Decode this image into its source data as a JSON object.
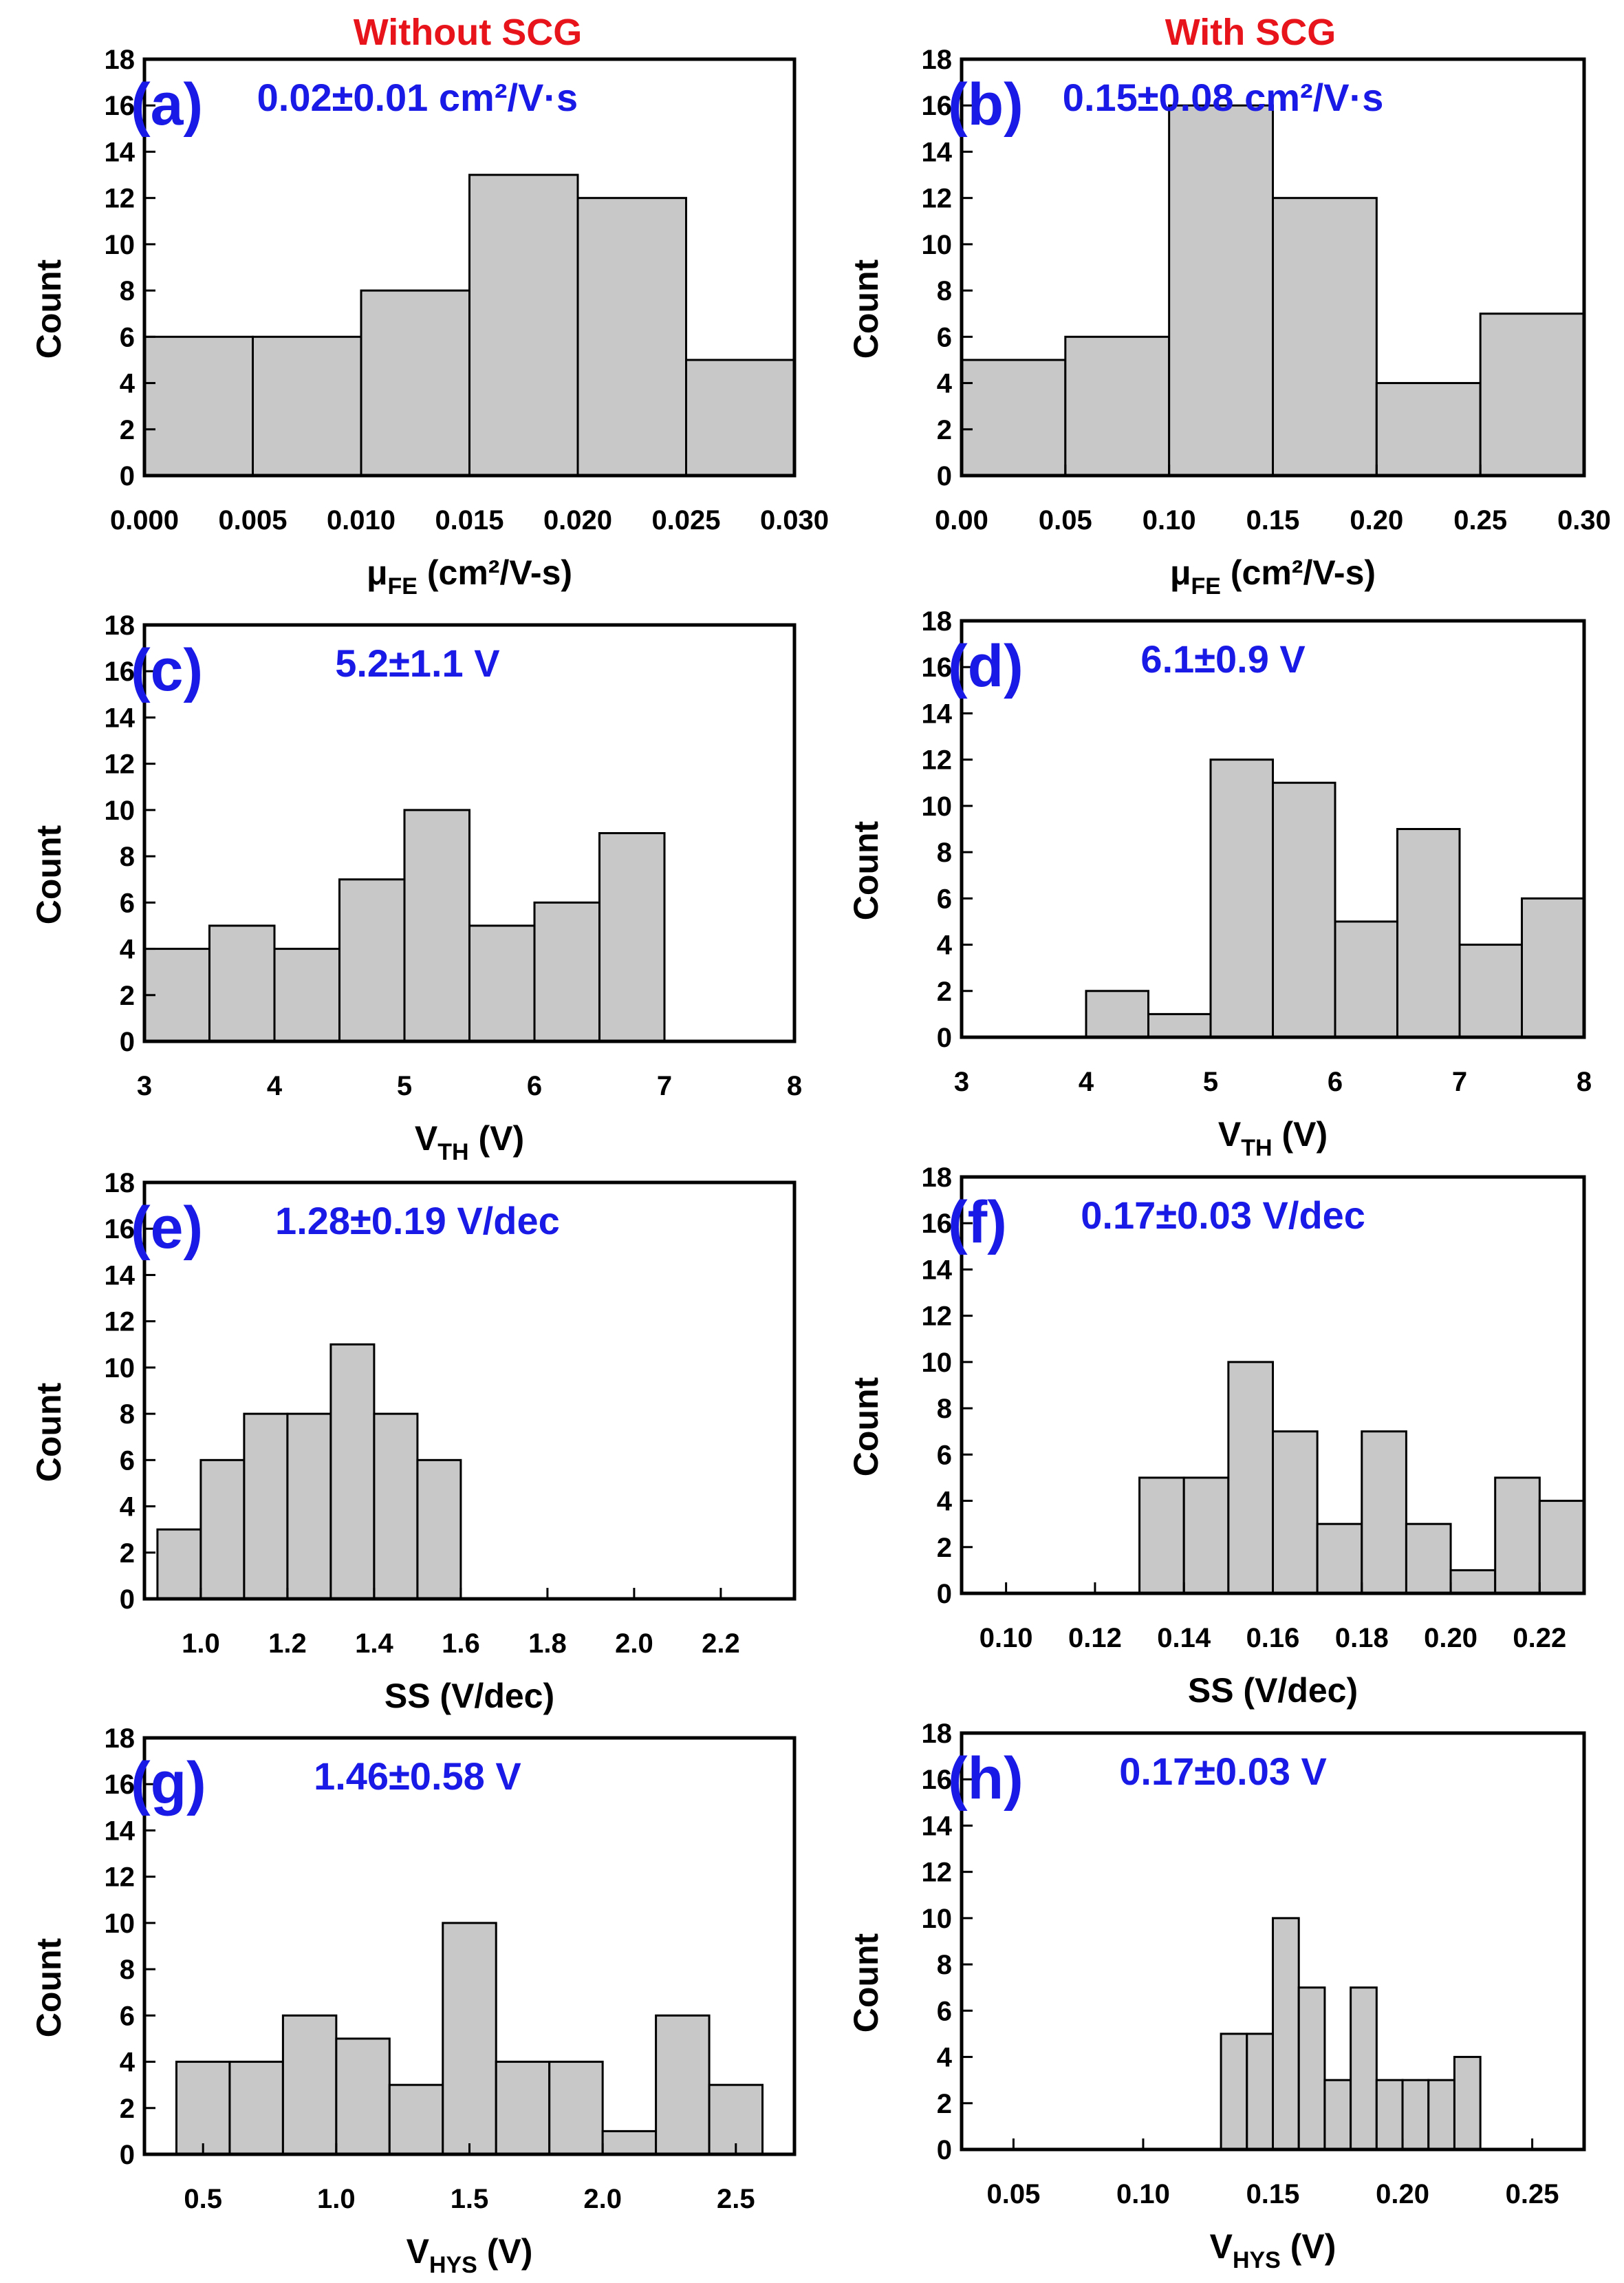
{
  "headers": {
    "left": "Without SCG",
    "right": "With SCG"
  },
  "chart_data": [
    {
      "id": "a",
      "type": "bar",
      "panel_label": "(a)",
      "annotation": "0.02±0.01 cm²/V·s",
      "xlabel": "μFE (cm²/V-s)",
      "xlabel_main": "μ",
      "xlabel_sub": "FE",
      "xlabel_rest": " (cm²/V-s)",
      "ylabel": "Count",
      "xlim": [
        0,
        0.03
      ],
      "ylim": [
        0,
        18
      ],
      "xticks": [
        0,
        0.005,
        0.01,
        0.015,
        0.02,
        0.025,
        0.03
      ],
      "xtick_labels": [
        "0.000",
        "0.005",
        "0.010",
        "0.015",
        "0.020",
        "0.025",
        "0.030"
      ],
      "yticks": [
        0,
        2,
        4,
        6,
        8,
        10,
        12,
        14,
        16,
        18
      ],
      "bin_edges": [
        0,
        0.005,
        0.01,
        0.015,
        0.02,
        0.025,
        0.03
      ],
      "values": [
        6,
        6,
        8,
        13,
        12,
        5
      ]
    },
    {
      "id": "b",
      "type": "bar",
      "panel_label": "(b)",
      "annotation": "0.15±0.08 cm²/V·s",
      "xlabel": "μFE (cm²/V-s)",
      "xlabel_main": "μ",
      "xlabel_sub": "FE",
      "xlabel_rest": " (cm²/V-s)",
      "ylabel": "Count",
      "xlim": [
        0,
        0.3
      ],
      "ylim": [
        0,
        18
      ],
      "xticks": [
        0,
        0.05,
        0.1,
        0.15,
        0.2,
        0.25,
        0.3
      ],
      "xtick_labels": [
        "0.00",
        "0.05",
        "0.10",
        "0.15",
        "0.20",
        "0.25",
        "0.30"
      ],
      "yticks": [
        0,
        2,
        4,
        6,
        8,
        10,
        12,
        14,
        16,
        18
      ],
      "bin_edges": [
        0,
        0.05,
        0.1,
        0.15,
        0.2,
        0.25,
        0.3
      ],
      "values": [
        5,
        6,
        16,
        12,
        4,
        7
      ]
    },
    {
      "id": "c",
      "type": "bar",
      "panel_label": "(c)",
      "annotation": "5.2±1.1 V",
      "xlabel": "VTH (V)",
      "xlabel_main": "V",
      "xlabel_sub": "TH",
      "xlabel_rest": " (V)",
      "ylabel": "Count",
      "xlim": [
        3,
        8
      ],
      "ylim": [
        0,
        18
      ],
      "xticks": [
        3,
        4,
        5,
        6,
        7,
        8
      ],
      "xtick_labels": [
        "3",
        "4",
        "5",
        "6",
        "7",
        "8"
      ],
      "yticks": [
        0,
        2,
        4,
        6,
        8,
        10,
        12,
        14,
        16,
        18
      ],
      "bin_edges": [
        3,
        3.5,
        4,
        4.5,
        5,
        5.5,
        6,
        6.5,
        7
      ],
      "values": [
        4,
        5,
        4,
        7,
        10,
        5,
        6,
        9
      ]
    },
    {
      "id": "d",
      "type": "bar",
      "panel_label": "(d)",
      "annotation": "6.1±0.9 V",
      "xlabel": "VTH (V)",
      "xlabel_main": "V",
      "xlabel_sub": "TH",
      "xlabel_rest": " (V)",
      "ylabel": "Count",
      "xlim": [
        3,
        8
      ],
      "ylim": [
        0,
        18
      ],
      "xticks": [
        3,
        4,
        5,
        6,
        7,
        8
      ],
      "xtick_labels": [
        "3",
        "4",
        "5",
        "6",
        "7",
        "8"
      ],
      "yticks": [
        0,
        2,
        4,
        6,
        8,
        10,
        12,
        14,
        16,
        18
      ],
      "bin_edges": [
        4,
        4.5,
        5,
        5.5,
        6,
        6.5,
        7,
        7.5,
        8
      ],
      "values": [
        2,
        1,
        12,
        11,
        5,
        9,
        4,
        6
      ]
    },
    {
      "id": "e",
      "type": "bar",
      "panel_label": "(e)",
      "annotation": "1.28±0.19 V/dec",
      "xlabel": "SS (V/dec)",
      "xlabel_main": "SS (V/dec)",
      "xlabel_sub": "",
      "xlabel_rest": "",
      "ylabel": "Count",
      "xlim": [
        0.87,
        2.37
      ],
      "ylim": [
        0,
        18
      ],
      "xticks": [
        1.0,
        1.2,
        1.4,
        1.6,
        1.8,
        2.0,
        2.2
      ],
      "xtick_labels": [
        "1.0",
        "1.2",
        "1.4",
        "1.6",
        "1.8",
        "2.0",
        "2.2"
      ],
      "yticks": [
        0,
        2,
        4,
        6,
        8,
        10,
        12,
        14,
        16,
        18
      ],
      "bin_edges": [
        0.9,
        1.0,
        1.1,
        1.2,
        1.3,
        1.4,
        1.5,
        1.6
      ],
      "values": [
        3,
        6,
        8,
        8,
        11,
        8,
        6
      ]
    },
    {
      "id": "f",
      "type": "bar",
      "panel_label": "(f)",
      "annotation": "0.17±0.03 V/dec",
      "xlabel": "SS (V/dec)",
      "xlabel_main": "SS (V/dec)",
      "xlabel_sub": "",
      "xlabel_rest": "",
      "ylabel": "Count",
      "xlim": [
        0.09,
        0.23
      ],
      "ylim": [
        0,
        18
      ],
      "xticks": [
        0.1,
        0.12,
        0.14,
        0.16,
        0.18,
        0.2,
        0.22
      ],
      "xtick_labels": [
        "0.10",
        "0.12",
        "0.14",
        "0.16",
        "0.18",
        "0.20",
        "0.22"
      ],
      "yticks": [
        0,
        2,
        4,
        6,
        8,
        10,
        12,
        14,
        16,
        18
      ],
      "bin_edges": [
        0.13,
        0.14,
        0.15,
        0.16,
        0.17,
        0.18,
        0.19,
        0.2,
        0.21,
        0.22,
        0.23
      ],
      "values": [
        5,
        5,
        10,
        7,
        3,
        7,
        3,
        1,
        5,
        4
      ]
    },
    {
      "id": "g",
      "type": "bar",
      "panel_label": "(g)",
      "annotation": "1.46±0.58 V",
      "xlabel": "VHYS (V)",
      "xlabel_main": "V",
      "xlabel_sub": "HYS",
      "xlabel_rest": " (V)",
      "ylabel": "Count",
      "xlim": [
        0.28,
        2.72
      ],
      "ylim": [
        0,
        18
      ],
      "xticks": [
        0.5,
        1.0,
        1.5,
        2.0,
        2.5
      ],
      "xtick_labels": [
        "0.5",
        "1.0",
        "1.5",
        "2.0",
        "2.5"
      ],
      "yticks": [
        0,
        2,
        4,
        6,
        8,
        10,
        12,
        14,
        16,
        18
      ],
      "bin_edges": [
        0.4,
        0.6,
        0.8,
        1.0,
        1.2,
        1.4,
        1.6,
        1.8,
        2.0,
        2.2,
        2.4,
        2.6
      ],
      "values": [
        4,
        4,
        6,
        5,
        3,
        10,
        4,
        4,
        1,
        6,
        3
      ]
    },
    {
      "id": "h",
      "type": "bar",
      "panel_label": "(h)",
      "annotation": "0.17±0.03 V",
      "xlabel": "VHYS (V)",
      "xlabel_main": "V",
      "xlabel_sub": "HYS",
      "xlabel_rest": " (V)",
      "ylabel": "Count",
      "xlim": [
        0.03,
        0.27
      ],
      "ylim": [
        0,
        18
      ],
      "xticks": [
        0.05,
        0.1,
        0.15,
        0.2,
        0.25
      ],
      "xtick_labels": [
        "0.05",
        "0.10",
        "0.15",
        "0.20",
        "0.25"
      ],
      "yticks": [
        0,
        2,
        4,
        6,
        8,
        10,
        12,
        14,
        16,
        18
      ],
      "bin_edges": [
        0.13,
        0.14,
        0.15,
        0.16,
        0.17,
        0.18,
        0.19,
        0.2,
        0.21,
        0.22,
        0.23
      ],
      "values": [
        5,
        5,
        10,
        7,
        3,
        7,
        3,
        3,
        3,
        4
      ]
    }
  ]
}
